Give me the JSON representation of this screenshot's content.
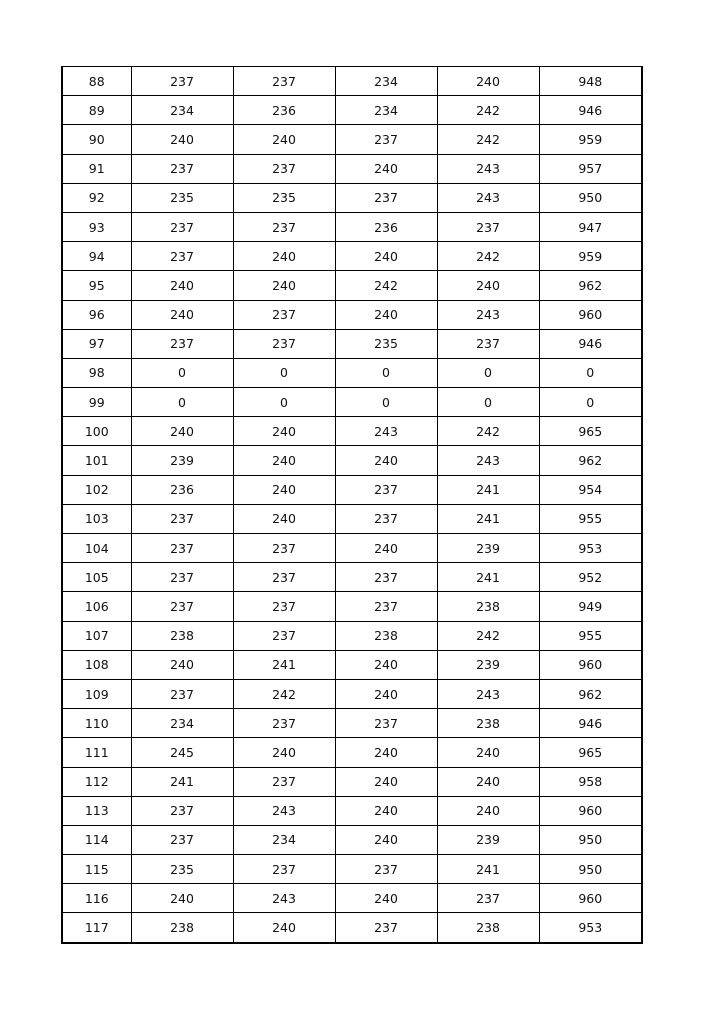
{
  "table": {
    "rows": [
      [
        "88",
        "237",
        "237",
        "234",
        "240",
        "948"
      ],
      [
        "89",
        "234",
        "236",
        "234",
        "242",
        "946"
      ],
      [
        "90",
        "240",
        "240",
        "237",
        "242",
        "959"
      ],
      [
        "91",
        "237",
        "237",
        "240",
        "243",
        "957"
      ],
      [
        "92",
        "235",
        "235",
        "237",
        "243",
        "950"
      ],
      [
        "93",
        "237",
        "237",
        "236",
        "237",
        "947"
      ],
      [
        "94",
        "237",
        "240",
        "240",
        "242",
        "959"
      ],
      [
        "95",
        "240",
        "240",
        "242",
        "240",
        "962"
      ],
      [
        "96",
        "240",
        "237",
        "240",
        "243",
        "960"
      ],
      [
        "97",
        "237",
        "237",
        "235",
        "237",
        "946"
      ],
      [
        "98",
        "0",
        "0",
        "0",
        "0",
        "0"
      ],
      [
        "99",
        "0",
        "0",
        "0",
        "0",
        "0"
      ],
      [
        "100",
        "240",
        "240",
        "243",
        "242",
        "965"
      ],
      [
        "101",
        "239",
        "240",
        "240",
        "243",
        "962"
      ],
      [
        "102",
        "236",
        "240",
        "237",
        "241",
        "954"
      ],
      [
        "103",
        "237",
        "240",
        "237",
        "241",
        "955"
      ],
      [
        "104",
        "237",
        "237",
        "240",
        "239",
        "953"
      ],
      [
        "105",
        "237",
        "237",
        "237",
        "241",
        "952"
      ],
      [
        "106",
        "237",
        "237",
        "237",
        "238",
        "949"
      ],
      [
        "107",
        "238",
        "237",
        "238",
        "242",
        "955"
      ],
      [
        "108",
        "240",
        "241",
        "240",
        "239",
        "960"
      ],
      [
        "109",
        "237",
        "242",
        "240",
        "243",
        "962"
      ],
      [
        "110",
        "234",
        "237",
        "237",
        "238",
        "946"
      ],
      [
        "111",
        "245",
        "240",
        "240",
        "240",
        "965"
      ],
      [
        "112",
        "241",
        "237",
        "240",
        "240",
        "958"
      ],
      [
        "113",
        "237",
        "243",
        "240",
        "240",
        "960"
      ],
      [
        "114",
        "237",
        "234",
        "240",
        "239",
        "950"
      ],
      [
        "115",
        "235",
        "237",
        "237",
        "241",
        "950"
      ],
      [
        "116",
        "240",
        "243",
        "240",
        "237",
        "960"
      ],
      [
        "117",
        "238",
        "240",
        "237",
        "238",
        "953"
      ]
    ]
  }
}
